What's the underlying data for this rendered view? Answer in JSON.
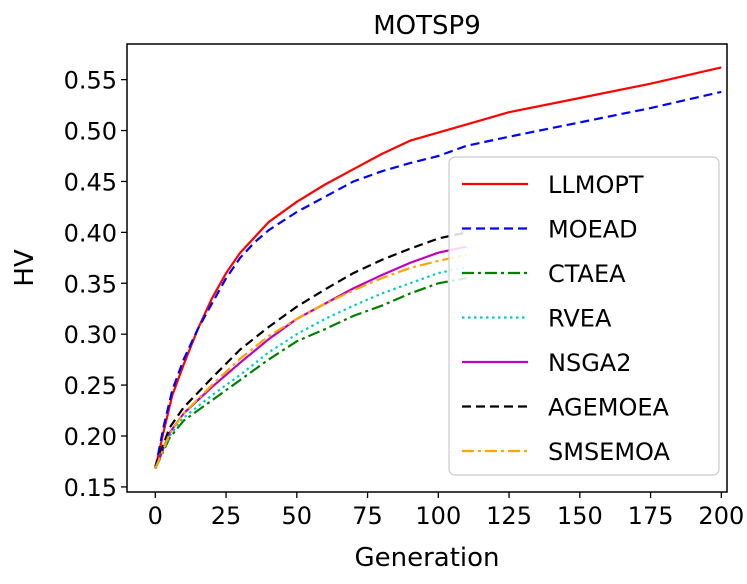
{
  "chart_data": {
    "type": "line",
    "title": "MOTSP9",
    "xlabel": "Generation",
    "ylabel": "HV",
    "xlim": [
      -10,
      202
    ],
    "ylim": [
      0.145,
      0.585
    ],
    "xticks": [
      0,
      25,
      50,
      75,
      100,
      125,
      150,
      175,
      200
    ],
    "yticks": [
      0.15,
      0.2,
      0.25,
      0.3,
      0.35,
      0.4,
      0.45,
      0.5,
      0.55
    ],
    "ytick_labels": [
      "0.15",
      "0.20",
      "0.25",
      "0.30",
      "0.35",
      "0.40",
      "0.45",
      "0.50",
      "0.55"
    ],
    "grid": false,
    "legend_position": "right",
    "series": [
      {
        "name": "LLMOPT",
        "color": "#ff0000",
        "style": "solid",
        "x": [
          0,
          3,
          6,
          10,
          15,
          20,
          25,
          30,
          35,
          40,
          50,
          60,
          70,
          80,
          90,
          100,
          110,
          125,
          150,
          175,
          200
        ],
        "values": [
          0.168,
          0.205,
          0.24,
          0.27,
          0.305,
          0.335,
          0.36,
          0.38,
          0.395,
          0.41,
          0.43,
          0.447,
          0.462,
          0.477,
          0.49,
          0.498,
          0.506,
          0.518,
          0.532,
          0.546,
          0.562
        ]
      },
      {
        "name": "MOEAD",
        "color": "#0000ff",
        "style": "dashed",
        "x": [
          0,
          3,
          6,
          10,
          15,
          20,
          25,
          30,
          35,
          40,
          50,
          60,
          70,
          80,
          90,
          100,
          110,
          125,
          150,
          175,
          200
        ],
        "values": [
          0.168,
          0.21,
          0.245,
          0.275,
          0.305,
          0.33,
          0.355,
          0.375,
          0.39,
          0.402,
          0.42,
          0.435,
          0.45,
          0.46,
          0.468,
          0.475,
          0.485,
          0.494,
          0.508,
          0.522,
          0.538
        ]
      },
      {
        "name": "CTAEA",
        "color": "#008000",
        "style": "dashdot",
        "x": [
          0,
          5,
          10,
          20,
          30,
          40,
          50,
          60,
          70,
          80,
          90,
          100,
          110
        ],
        "values": [
          0.168,
          0.198,
          0.215,
          0.235,
          0.255,
          0.275,
          0.293,
          0.305,
          0.318,
          0.328,
          0.34,
          0.35,
          0.355
        ]
      },
      {
        "name": "RVEA",
        "color": "#00cccc",
        "style": "dotted",
        "x": [
          0,
          5,
          10,
          20,
          30,
          40,
          50,
          60,
          70,
          80,
          90,
          100,
          110
        ],
        "values": [
          0.168,
          0.2,
          0.218,
          0.24,
          0.26,
          0.282,
          0.3,
          0.315,
          0.328,
          0.34,
          0.35,
          0.36,
          0.366
        ]
      },
      {
        "name": "NSGA2",
        "color": "#bf00bf",
        "style": "solid",
        "x": [
          0,
          5,
          10,
          20,
          30,
          40,
          50,
          60,
          70,
          80,
          90,
          100,
          110
        ],
        "values": [
          0.168,
          0.203,
          0.222,
          0.248,
          0.272,
          0.295,
          0.315,
          0.33,
          0.345,
          0.358,
          0.37,
          0.38,
          0.386
        ]
      },
      {
        "name": "AGEMOEA",
        "color": "#000000",
        "style": "dashed",
        "x": [
          0,
          5,
          10,
          20,
          30,
          40,
          50,
          60,
          70,
          80,
          90,
          100,
          110
        ],
        "values": [
          0.17,
          0.208,
          0.228,
          0.257,
          0.285,
          0.307,
          0.327,
          0.344,
          0.36,
          0.373,
          0.384,
          0.394,
          0.4
        ]
      },
      {
        "name": "SMSEMOA",
        "color": "#ffa500",
        "style": "dashdot",
        "x": [
          0,
          5,
          10,
          20,
          30,
          40,
          50,
          60,
          70,
          80,
          90,
          100,
          110
        ],
        "values": [
          0.168,
          0.202,
          0.222,
          0.25,
          0.276,
          0.298,
          0.315,
          0.33,
          0.343,
          0.355,
          0.365,
          0.372,
          0.378
        ]
      }
    ]
  }
}
